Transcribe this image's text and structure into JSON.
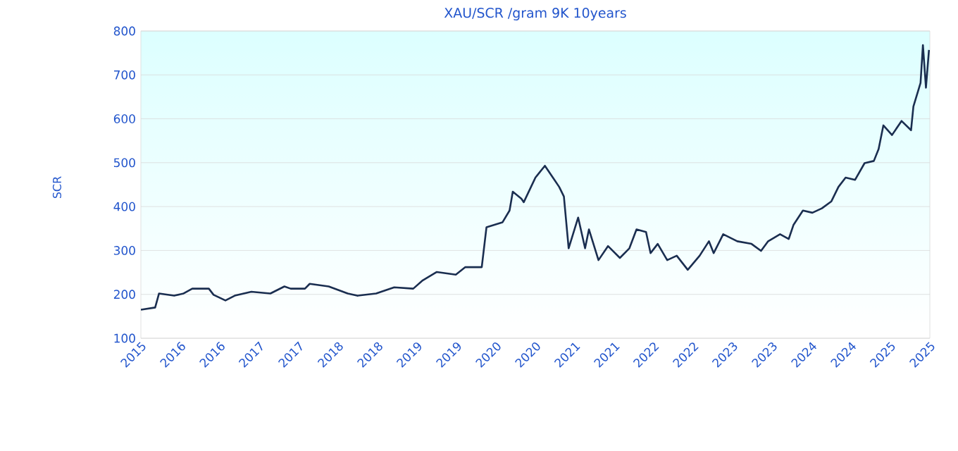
{
  "chart_data": {
    "type": "line",
    "title": "XAU/SCR /gram 9K 10years",
    "ylabel": "SCR",
    "x": [
      "2015-10-01",
      "2015-12-06",
      "2015-12-24",
      "2016-03-03",
      "2016-04-16",
      "2016-05-26",
      "2016-08-11",
      "2016-09-02",
      "2016-10-27",
      "2016-12-09",
      "2017-02-24",
      "2017-05-23",
      "2017-07-27",
      "2017-08-25",
      "2017-10-30",
      "2017-11-21",
      "2018-02-17",
      "2018-05-16",
      "2018-06-29",
      "2018-09-24",
      "2018-12-17",
      "2019-03-15",
      "2019-04-28",
      "2019-07-02",
      "2019-09-28",
      "2019-11-11",
      "2020-01-26",
      "2020-02-17",
      "2020-05-01",
      "2020-06-03",
      "2020-06-18",
      "2020-07-28",
      "2020-08-08",
      "2020-10-01",
      "2020-11-14",
      "2021-01-19",
      "2021-02-10",
      "2021-03-04",
      "2021-04-17",
      "2021-05-19",
      "2021-06-06",
      "2021-07-20",
      "2021-09-02",
      "2021-10-27",
      "2021-12-10",
      "2022-01-12",
      "2022-02-25",
      "2022-03-18",
      "2022-04-20",
      "2022-06-03",
      "2022-07-17",
      "2022-09-06",
      "2022-10-31",
      "2022-12-13",
      "2023-01-04",
      "2023-02-17",
      "2023-04-23",
      "2023-06-28",
      "2023-08-11",
      "2023-09-13",
      "2023-11-07",
      "2023-12-17",
      "2024-01-08",
      "2024-02-21",
      "2024-04-05",
      "2024-05-19",
      "2024-07-02",
      "2024-08-04",
      "2024-09-06",
      "2024-10-20",
      "2024-12-03",
      "2025-01-15",
      "2025-02-06",
      "2025-02-28",
      "2025-04-09",
      "2025-05-23",
      "2025-07-06",
      "2025-07-17",
      "2025-08-19",
      "2025-08-30",
      "2025-09-13",
      "2025-09-27"
    ],
    "series": [
      {
        "color": "#1a2e50",
        "values": [
          165,
          170,
          202,
          197,
          202,
          213,
          213,
          199,
          186,
          197,
          206,
          202,
          218,
          213,
          213,
          224,
          218,
          202,
          197,
          202,
          216,
          213,
          232,
          251,
          245,
          262,
          262,
          353,
          364,
          391,
          434,
          418,
          410,
          466,
          493,
          445,
          423,
          305,
          375,
          305,
          348,
          278,
          310,
          283,
          305,
          348,
          342,
          294,
          315,
          278,
          288,
          256,
          288,
          321,
          294,
          337,
          321,
          315,
          299,
          321,
          337,
          326,
          358,
          391,
          386,
          396,
          412,
          445,
          466,
          461,
          499,
          504,
          531,
          585,
          563,
          595,
          574,
          628,
          682,
          768,
          671,
          757
        ]
      }
    ],
    "xlim": [
      "2015-10-01",
      "2025-10-01"
    ],
    "xticks": [
      {
        "value": "2015-10-01",
        "label": "2015"
      },
      {
        "value": "2016-04-01",
        "label": "2016"
      },
      {
        "value": "2016-10-01",
        "label": "2016"
      },
      {
        "value": "2017-04-01",
        "label": "2017"
      },
      {
        "value": "2017-10-01",
        "label": "2017"
      },
      {
        "value": "2018-04-01",
        "label": "2018"
      },
      {
        "value": "2018-10-01",
        "label": "2018"
      },
      {
        "value": "2019-04-01",
        "label": "2019"
      },
      {
        "value": "2019-10-01",
        "label": "2019"
      },
      {
        "value": "2020-04-01",
        "label": "2020"
      },
      {
        "value": "2020-10-01",
        "label": "2020"
      },
      {
        "value": "2021-04-01",
        "label": "2021"
      },
      {
        "value": "2021-10-01",
        "label": "2021"
      },
      {
        "value": "2022-04-01",
        "label": "2022"
      },
      {
        "value": "2022-10-01",
        "label": "2022"
      },
      {
        "value": "2023-04-01",
        "label": "2023"
      },
      {
        "value": "2023-10-01",
        "label": "2023"
      },
      {
        "value": "2024-04-01",
        "label": "2024"
      },
      {
        "value": "2024-10-01",
        "label": "2024"
      },
      {
        "value": "2025-04-01",
        "label": "2025"
      },
      {
        "value": "2025-10-01",
        "label": "2025"
      }
    ],
    "ylim": [
      100,
      800
    ],
    "yticks": [
      100,
      200,
      300,
      400,
      500,
      600,
      700,
      800
    ],
    "grid": "y",
    "marker": "none",
    "line_style": "solid"
  }
}
